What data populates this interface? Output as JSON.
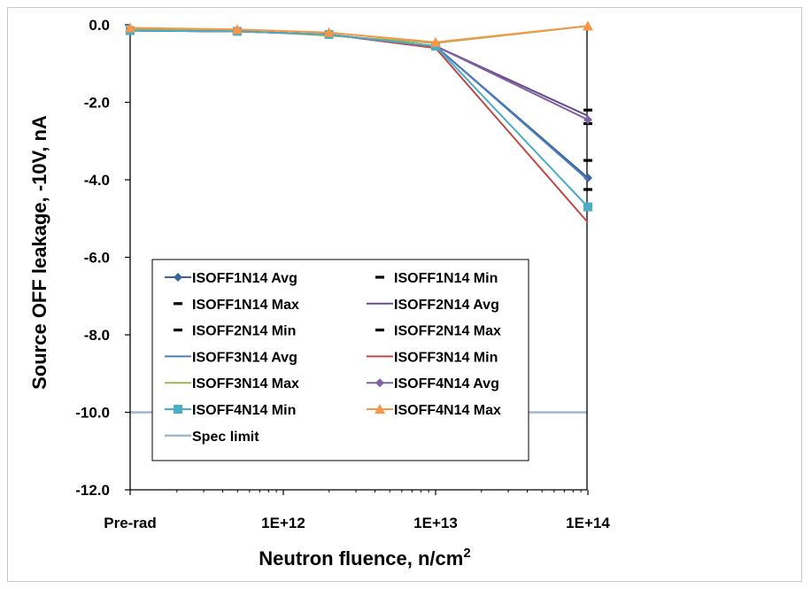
{
  "chart_data": {
    "type": "line",
    "xlabel": "Neutron fluence, n/cm",
    "xlabel_superscript": "2",
    "ylabel": "Source OFF leakage, -10V, nA",
    "x_ticks": [
      "Pre-rad",
      "1E+12",
      "1E+13",
      "1E+14"
    ],
    "x_scale": "log, with Pre-rad position left of 1E+12",
    "y_ticks": [
      "0.0",
      "-2.0",
      "-4.0",
      "-6.0",
      "-8.0",
      "-10.0",
      "-12.0"
    ],
    "ylim": [
      -12,
      0
    ],
    "grid": false,
    "legend_position": "lower-left inside plot area",
    "x": [
      "Pre-rad",
      "5E+11",
      "2E+12",
      "1E+13",
      "1E+14"
    ],
    "series": [
      {
        "name": "ISOFF1N14 Avg",
        "values": [
          -0.15,
          -0.17,
          -0.25,
          -0.55,
          -3.95
        ],
        "color": "#3d6294",
        "marker": "diamond",
        "line": true
      },
      {
        "name": "ISOFF1N14 Min",
        "values": [
          -0.15,
          -0.17,
          -0.25,
          -0.55,
          -4.25
        ],
        "color": "#000000",
        "marker": "dash",
        "line": false
      },
      {
        "name": "ISOFF1N14 Max",
        "values": [
          -0.1,
          -0.15,
          -0.22,
          -0.5,
          -3.5
        ],
        "color": "#000000",
        "marker": "dash",
        "line": false
      },
      {
        "name": "ISOFF2N14 Avg",
        "values": [
          -0.15,
          -0.17,
          -0.25,
          -0.55,
          -2.35
        ],
        "color": "#6a4c8c",
        "marker": "none",
        "line": true
      },
      {
        "name": "ISOFF2N14 Min",
        "values": [
          -0.15,
          -0.18,
          -0.26,
          -0.56,
          -2.55
        ],
        "color": "#000000",
        "marker": "dash",
        "line": false
      },
      {
        "name": "ISOFF2N14 Max",
        "values": [
          -0.1,
          -0.14,
          -0.22,
          -0.5,
          -2.2
        ],
        "color": "#000000",
        "marker": "dash",
        "line": false
      },
      {
        "name": "ISOFF3N14 Avg",
        "values": [
          -0.15,
          -0.17,
          -0.25,
          -0.55,
          -4.0
        ],
        "color": "#4a7ebb",
        "marker": "none",
        "line": true
      },
      {
        "name": "ISOFF3N14 Min",
        "values": [
          -0.15,
          -0.17,
          -0.25,
          -0.6,
          -5.1
        ],
        "color": "#be4b48",
        "marker": "none",
        "line": true
      },
      {
        "name": "ISOFF3N14 Max",
        "values": [
          -0.12,
          -0.15,
          -0.28,
          -0.47,
          -0.03
        ],
        "color": "#98b954",
        "marker": "none",
        "line": true
      },
      {
        "name": "ISOFF4N14 Avg",
        "values": [
          -0.15,
          -0.17,
          -0.25,
          -0.55,
          -2.45
        ],
        "color": "#7e62a1",
        "marker": "diamond",
        "line": true
      },
      {
        "name": "ISOFF4N14 Min",
        "values": [
          -0.15,
          -0.17,
          -0.25,
          -0.55,
          -4.7
        ],
        "color": "#4bacc6",
        "marker": "square",
        "line": true
      },
      {
        "name": "ISOFF4N14 Max",
        "values": [
          -0.08,
          -0.12,
          -0.2,
          -0.45,
          -0.03
        ],
        "color": "#f79646",
        "marker": "triangle",
        "line": true
      },
      {
        "name": "Spec limit",
        "values": [
          -10,
          -10,
          -10,
          -10,
          -10
        ],
        "color": "#a3b5cf",
        "marker": "none",
        "line": true,
        "spec": true
      }
    ]
  }
}
